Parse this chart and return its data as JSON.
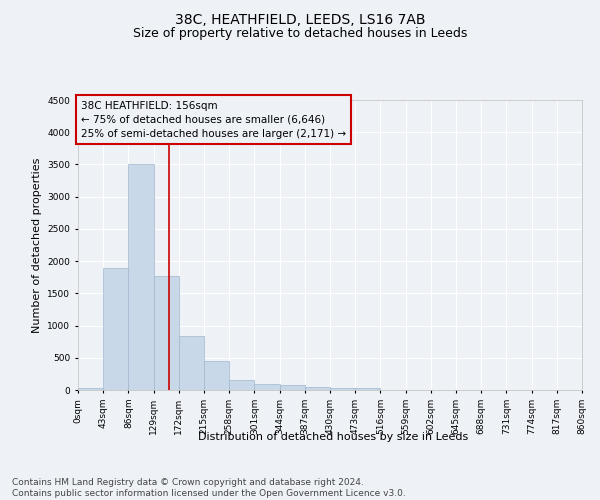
{
  "title": "38C, HEATHFIELD, LEEDS, LS16 7AB",
  "subtitle": "Size of property relative to detached houses in Leeds",
  "xlabel": "Distribution of detached houses by size in Leeds",
  "ylabel": "Number of detached properties",
  "bar_edges": [
    0,
    43,
    86,
    129,
    172,
    215,
    258,
    301,
    344,
    387,
    430,
    473,
    516,
    559,
    602,
    645,
    688,
    731,
    774,
    817,
    860
  ],
  "bar_heights": [
    30,
    1900,
    3500,
    1775,
    840,
    445,
    155,
    90,
    75,
    45,
    30,
    25,
    5,
    3,
    2,
    1,
    1,
    0,
    0,
    0
  ],
  "bar_color": "#c8d8e8",
  "bar_edgecolor": "#a0b8d0",
  "bar_linewidth": 0.5,
  "vline_x": 156,
  "vline_color": "#cc0000",
  "vline_linewidth": 1.2,
  "ylim": [
    0,
    4500
  ],
  "yticks": [
    0,
    500,
    1000,
    1500,
    2000,
    2500,
    3000,
    3500,
    4000,
    4500
  ],
  "xlim": [
    0,
    860
  ],
  "xtick_labels": [
    "0sqm",
    "43sqm",
    "86sqm",
    "129sqm",
    "172sqm",
    "215sqm",
    "258sqm",
    "301sqm",
    "344sqm",
    "387sqm",
    "430sqm",
    "473sqm",
    "516sqm",
    "559sqm",
    "602sqm",
    "645sqm",
    "688sqm",
    "731sqm",
    "774sqm",
    "817sqm",
    "860sqm"
  ],
  "xtick_positions": [
    0,
    43,
    86,
    129,
    172,
    215,
    258,
    301,
    344,
    387,
    430,
    473,
    516,
    559,
    602,
    645,
    688,
    731,
    774,
    817,
    860
  ],
  "annotation_text": "38C HEATHFIELD: 156sqm\n← 75% of detached houses are smaller (6,646)\n25% of semi-detached houses are larger (2,171) →",
  "footer_text": "Contains HM Land Registry data © Crown copyright and database right 2024.\nContains public sector information licensed under the Open Government Licence v3.0.",
  "bg_color": "#eef2f7",
  "grid_color": "#ffffff",
  "title_fontsize": 10,
  "subtitle_fontsize": 9,
  "axis_label_fontsize": 8,
  "tick_fontsize": 6.5,
  "annotation_fontsize": 7.5,
  "footer_fontsize": 6.5,
  "ylabel_fontsize": 8
}
